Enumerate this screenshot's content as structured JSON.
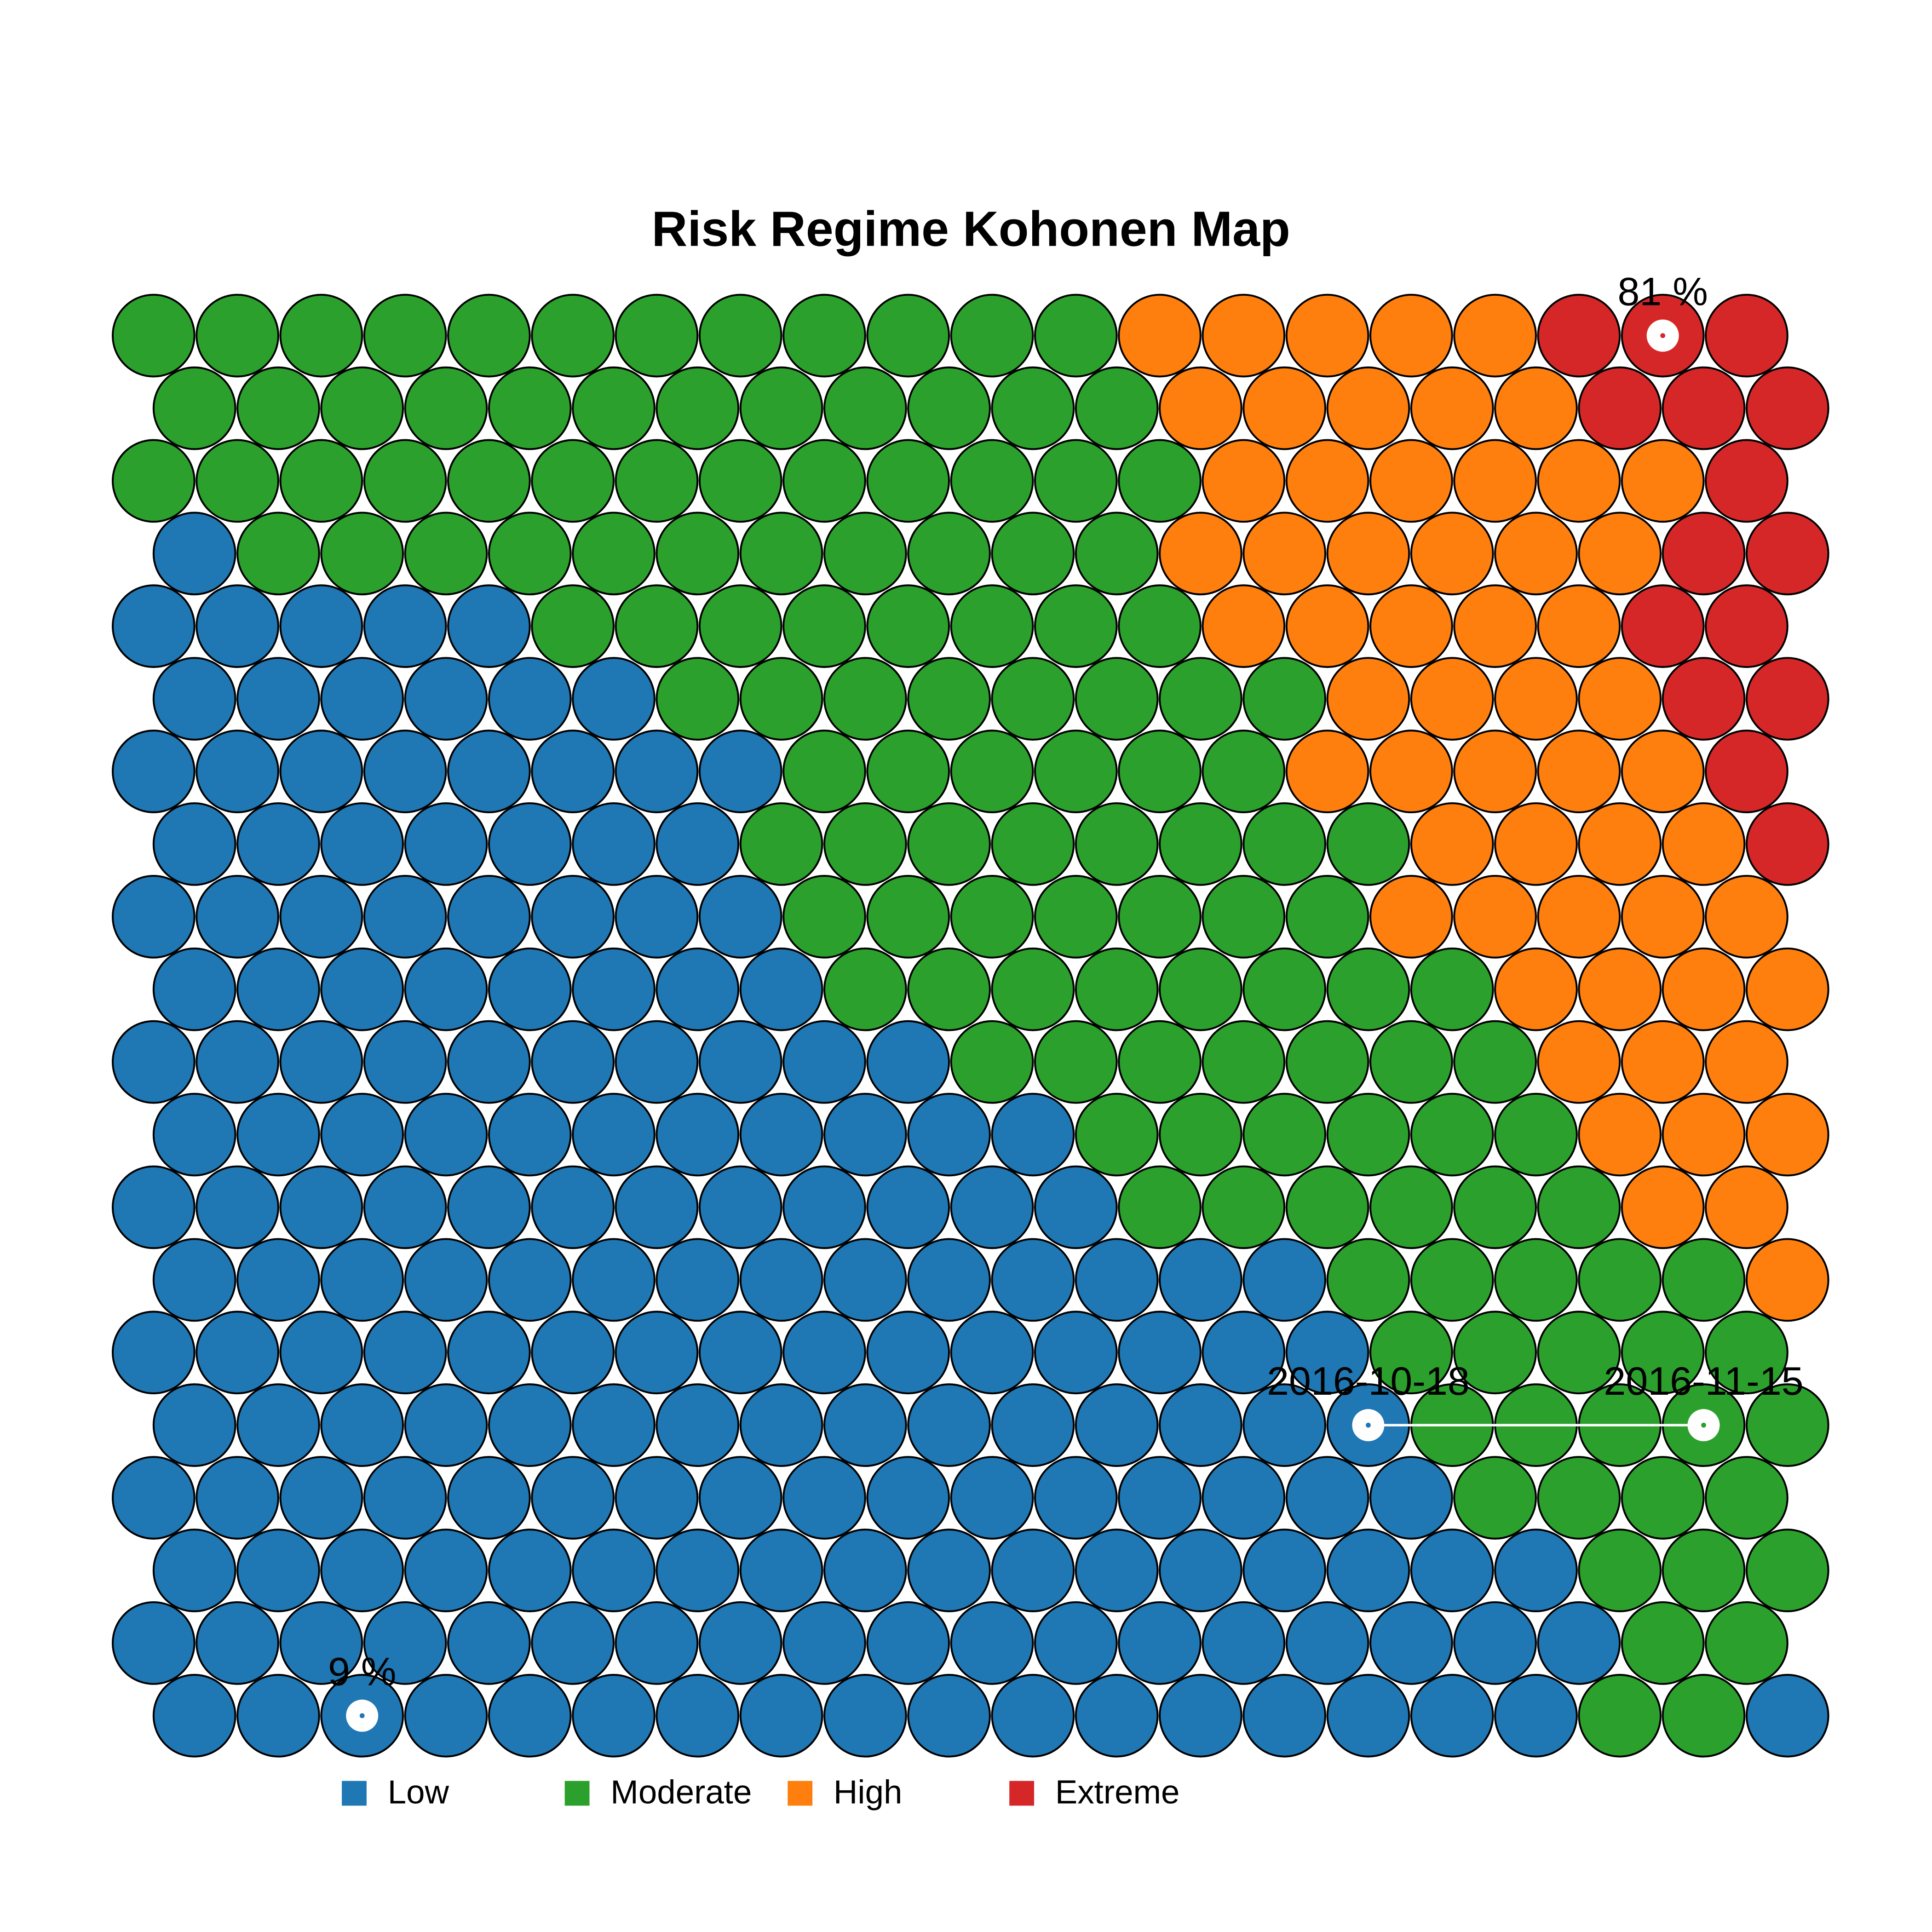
{
  "chart_data": {
    "type": "som",
    "title": "Risk Regime Kohonen Map",
    "series": [
      {
        "name": "Low",
        "color": "#1f77b4"
      },
      {
        "name": "Moderate",
        "color": "#2ca02c"
      },
      {
        "name": "High",
        "color": "#ff7f0e"
      },
      {
        "name": "Extreme",
        "color": "#d62728"
      }
    ],
    "cells": [
      [
        1,
        1,
        1,
        1,
        1,
        1,
        1,
        1,
        1,
        1,
        1,
        1,
        2,
        2,
        2,
        2,
        2,
        3,
        3,
        3
      ],
      [
        1,
        1,
        1,
        1,
        1,
        1,
        1,
        1,
        1,
        1,
        1,
        1,
        2,
        2,
        2,
        2,
        2,
        3,
        3,
        3
      ],
      [
        1,
        1,
        1,
        1,
        1,
        1,
        1,
        1,
        1,
        1,
        1,
        1,
        1,
        2,
        2,
        2,
        2,
        2,
        2,
        3
      ],
      [
        0,
        1,
        1,
        1,
        1,
        1,
        1,
        1,
        1,
        1,
        1,
        1,
        2,
        2,
        2,
        2,
        2,
        2,
        3,
        3
      ],
      [
        0,
        0,
        0,
        0,
        0,
        1,
        1,
        1,
        1,
        1,
        1,
        1,
        1,
        2,
        2,
        2,
        2,
        2,
        3,
        3
      ],
      [
        0,
        0,
        0,
        0,
        0,
        0,
        1,
        1,
        1,
        1,
        1,
        1,
        1,
        1,
        2,
        2,
        2,
        2,
        3,
        3
      ],
      [
        0,
        0,
        0,
        0,
        0,
        0,
        0,
        0,
        1,
        1,
        1,
        1,
        1,
        1,
        2,
        2,
        2,
        2,
        2,
        3
      ],
      [
        0,
        0,
        0,
        0,
        0,
        0,
        0,
        1,
        1,
        1,
        1,
        1,
        1,
        1,
        1,
        2,
        2,
        2,
        2,
        3
      ],
      [
        0,
        0,
        0,
        0,
        0,
        0,
        0,
        0,
        1,
        1,
        1,
        1,
        1,
        1,
        1,
        2,
        2,
        2,
        2,
        2
      ],
      [
        0,
        0,
        0,
        0,
        0,
        0,
        0,
        0,
        1,
        1,
        1,
        1,
        1,
        1,
        1,
        1,
        2,
        2,
        2,
        2
      ],
      [
        0,
        0,
        0,
        0,
        0,
        0,
        0,
        0,
        0,
        0,
        1,
        1,
        1,
        1,
        1,
        1,
        1,
        2,
        2,
        2
      ],
      [
        0,
        0,
        0,
        0,
        0,
        0,
        0,
        0,
        0,
        0,
        0,
        1,
        1,
        1,
        1,
        1,
        1,
        2,
        2,
        2
      ],
      [
        0,
        0,
        0,
        0,
        0,
        0,
        0,
        0,
        0,
        0,
        0,
        0,
        1,
        1,
        1,
        1,
        1,
        1,
        2,
        2
      ],
      [
        0,
        0,
        0,
        0,
        0,
        0,
        0,
        0,
        0,
        0,
        0,
        0,
        0,
        0,
        1,
        1,
        1,
        1,
        1,
        2
      ],
      [
        0,
        0,
        0,
        0,
        0,
        0,
        0,
        0,
        0,
        0,
        0,
        0,
        0,
        0,
        0,
        1,
        1,
        1,
        1,
        1
      ],
      [
        0,
        0,
        0,
        0,
        0,
        0,
        0,
        0,
        0,
        0,
        0,
        0,
        0,
        0,
        0,
        1,
        1,
        1,
        1,
        1
      ],
      [
        0,
        0,
        0,
        0,
        0,
        0,
        0,
        0,
        0,
        0,
        0,
        0,
        0,
        0,
        0,
        0,
        1,
        1,
        1,
        1
      ],
      [
        0,
        0,
        0,
        0,
        0,
        0,
        0,
        0,
        0,
        0,
        0,
        0,
        0,
        0,
        0,
        0,
        0,
        1,
        1,
        1
      ],
      [
        0,
        0,
        0,
        0,
        0,
        0,
        0,
        0,
        0,
        0,
        0,
        0,
        0,
        0,
        0,
        0,
        0,
        0,
        1,
        1
      ],
      [
        0,
        0,
        0,
        0,
        0,
        0,
        0,
        0,
        0,
        0,
        0,
        0,
        0,
        0,
        0,
        0,
        0,
        1,
        1,
        0
      ]
    ],
    "markers": [
      {
        "label": "81 %",
        "cell": [
          0,
          18
        ]
      },
      {
        "label": "2016-10-18",
        "cell": [
          15,
          14
        ]
      },
      {
        "label": "2016-11-15",
        "cell": [
          15,
          18
        ]
      },
      {
        "label": "9 %",
        "cell": [
          19,
          2
        ]
      }
    ]
  }
}
